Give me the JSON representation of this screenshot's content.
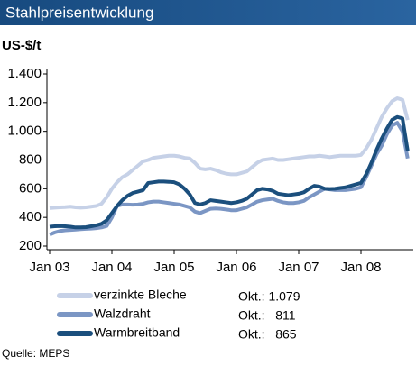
{
  "chart_data": {
    "type": "line",
    "title": "Stahlpreisentwicklung",
    "y_label": "US-$/t",
    "source": "Quelle: MEPS",
    "categories": [
      "Jan 03",
      null,
      null,
      null,
      null,
      null,
      null,
      null,
      null,
      null,
      null,
      null,
      "Jan 04",
      null,
      null,
      null,
      null,
      null,
      null,
      null,
      null,
      null,
      null,
      null,
      "Jan 05",
      null,
      null,
      null,
      null,
      null,
      null,
      null,
      null,
      null,
      null,
      null,
      "Jan 06",
      null,
      null,
      null,
      null,
      null,
      null,
      null,
      null,
      null,
      null,
      null,
      "Jan 07",
      null,
      null,
      null,
      null,
      null,
      null,
      null,
      null,
      null,
      null,
      null,
      "Jan 08",
      null,
      null,
      null,
      null,
      null,
      null,
      null,
      null,
      null
    ],
    "series": [
      {
        "name": "verzinkte Bleche",
        "color": "#c6d1e7",
        "last_label": "Okt.: 1.079",
        "values": [
          465,
          468,
          470,
          472,
          475,
          470,
          468,
          470,
          475,
          480,
          495,
          540,
          600,
          645,
          680,
          700,
          730,
          760,
          790,
          800,
          815,
          820,
          825,
          830,
          830,
          825,
          815,
          810,
          780,
          740,
          735,
          740,
          730,
          715,
          705,
          700,
          700,
          710,
          720,
          750,
          780,
          800,
          805,
          810,
          800,
          800,
          805,
          810,
          815,
          820,
          825,
          825,
          830,
          825,
          820,
          825,
          830,
          830,
          830,
          830,
          835,
          880,
          940,
          1020,
          1100,
          1160,
          1210,
          1230,
          1220,
          1079
        ]
      },
      {
        "name": "Walzdraht",
        "color": "#7b96c4",
        "last_label": "Okt.:   811",
        "values": [
          280,
          295,
          305,
          310,
          312,
          315,
          318,
          320,
          322,
          325,
          330,
          340,
          400,
          480,
          490,
          490,
          488,
          490,
          495,
          505,
          510,
          510,
          505,
          500,
          495,
          490,
          480,
          470,
          440,
          430,
          445,
          460,
          462,
          460,
          455,
          450,
          450,
          460,
          470,
          490,
          510,
          520,
          525,
          530,
          515,
          505,
          500,
          500,
          505,
          515,
          540,
          560,
          580,
          600,
          595,
          590,
          590,
          590,
          595,
          600,
          610,
          680,
          760,
          840,
          900,
          980,
          1040,
          1060,
          1000,
          811
        ]
      },
      {
        "name": "Warmbreitband",
        "color": "#1b4f7d",
        "last_label": "Okt.:   865",
        "values": [
          335,
          338,
          340,
          338,
          335,
          330,
          330,
          332,
          338,
          345,
          355,
          380,
          430,
          480,
          520,
          550,
          570,
          580,
          590,
          640,
          645,
          650,
          650,
          648,
          645,
          630,
          600,
          560,
          500,
          490,
          500,
          520,
          515,
          510,
          505,
          500,
          505,
          515,
          530,
          560,
          590,
          600,
          595,
          585,
          565,
          560,
          555,
          560,
          565,
          575,
          600,
          620,
          615,
          600,
          598,
          600,
          605,
          610,
          620,
          630,
          640,
          700,
          780,
          870,
          950,
          1020,
          1080,
          1100,
          1090,
          865
        ]
      }
    ],
    "ylim": [
      200,
      1400
    ],
    "yticks": [
      200,
      400,
      600,
      800,
      {
        "value": 1000,
        "label": "1.000"
      },
      {
        "value": 1200,
        "label": "1.200"
      },
      {
        "value": 1400,
        "label": "1.400"
      }
    ]
  }
}
